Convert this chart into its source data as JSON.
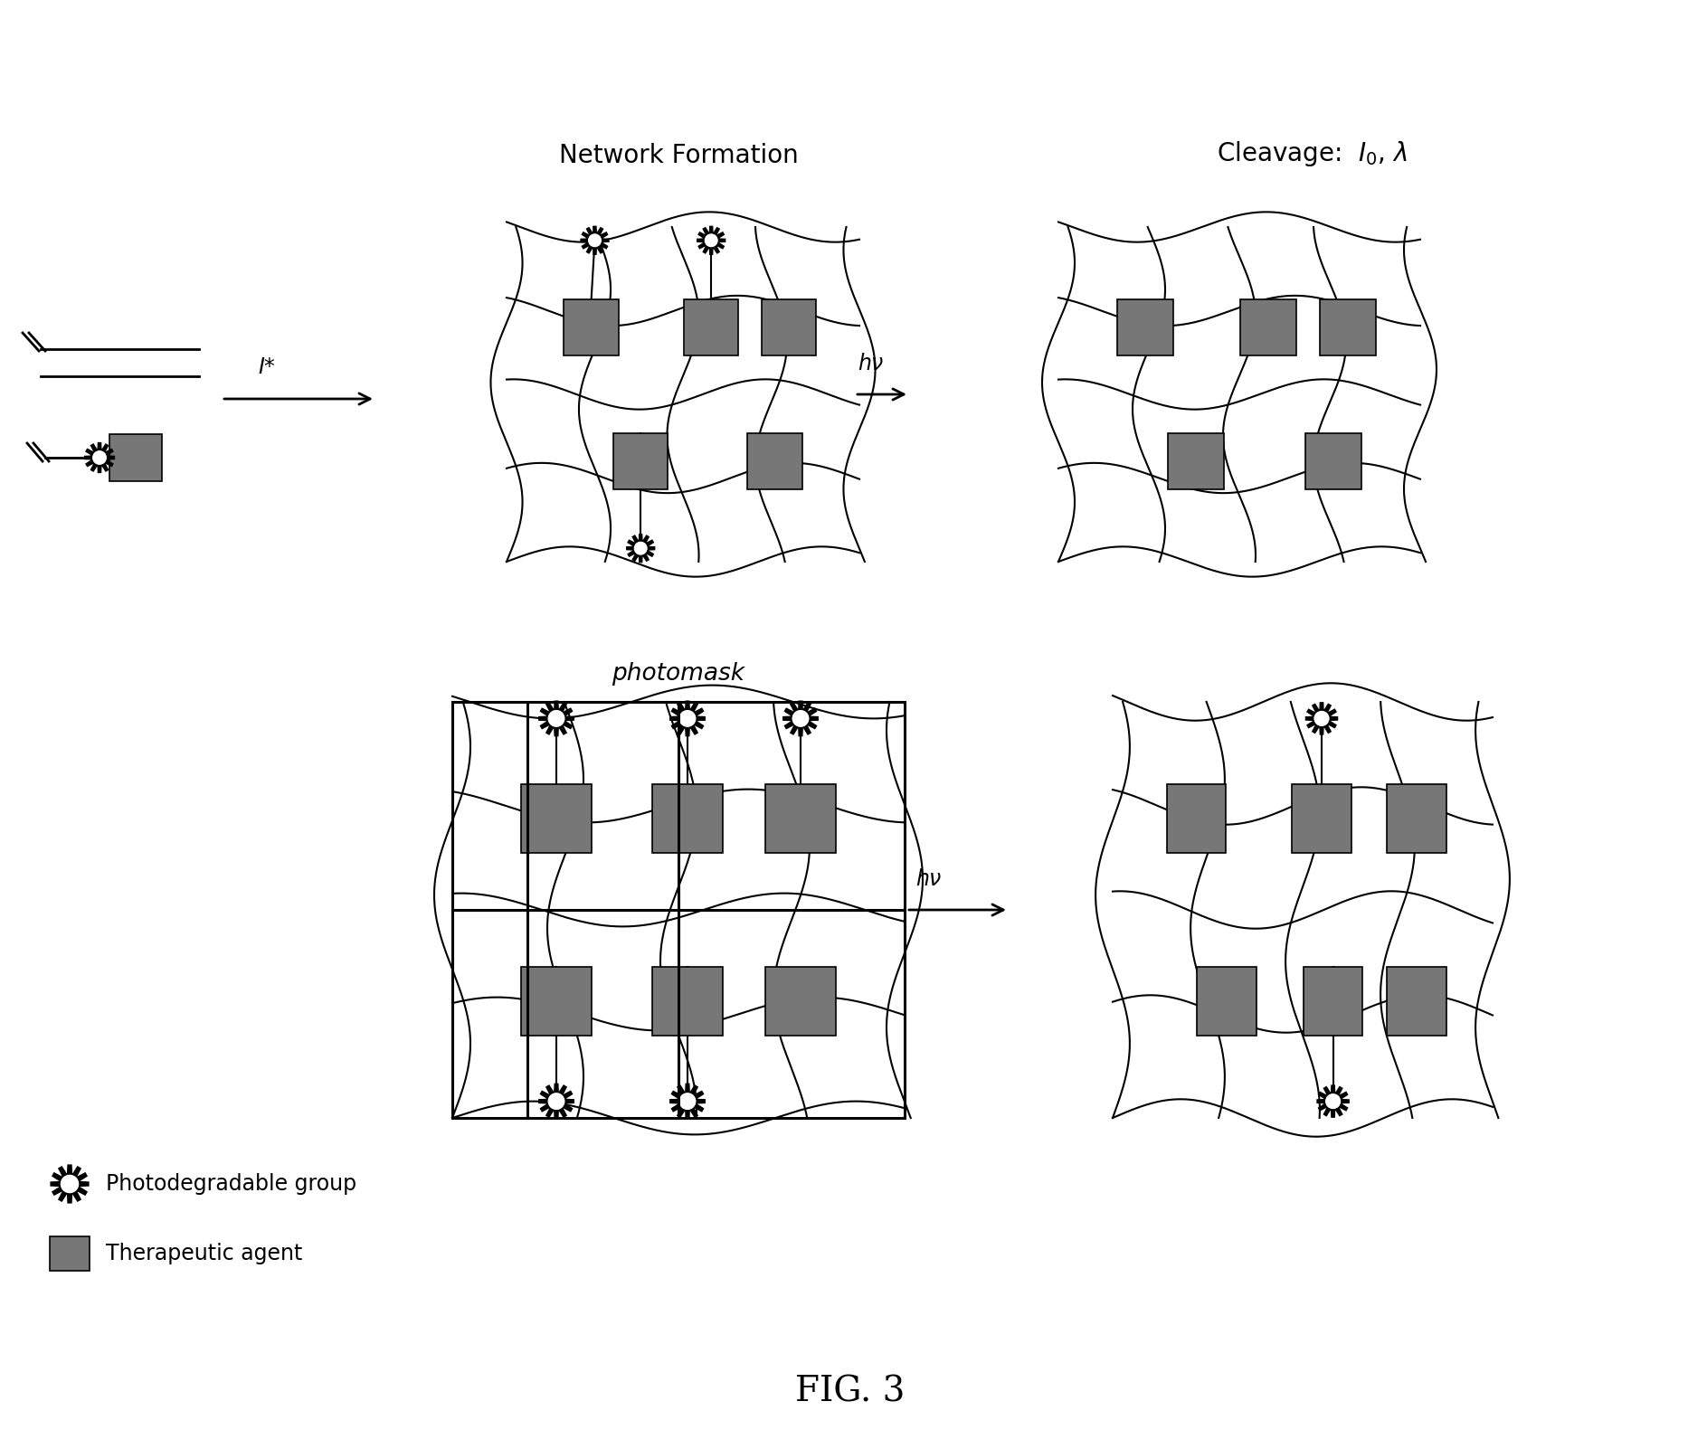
{
  "title": "FIG. 3",
  "network_formation_label": "Network Formation",
  "cleavage_label": "Cleavage:  $I_0$, $\\lambda$",
  "photomask_label": "photomask",
  "hv_label": "hν",
  "I_star_label": "I*",
  "legend_photodeg": "Photodegradable group",
  "legend_therapeutic": "Therapeutic agent",
  "bg_color": "#ffffff",
  "line_color": "#000000",
  "box_color": "#777777",
  "fig_width": 18.87,
  "fig_height": 15.91
}
